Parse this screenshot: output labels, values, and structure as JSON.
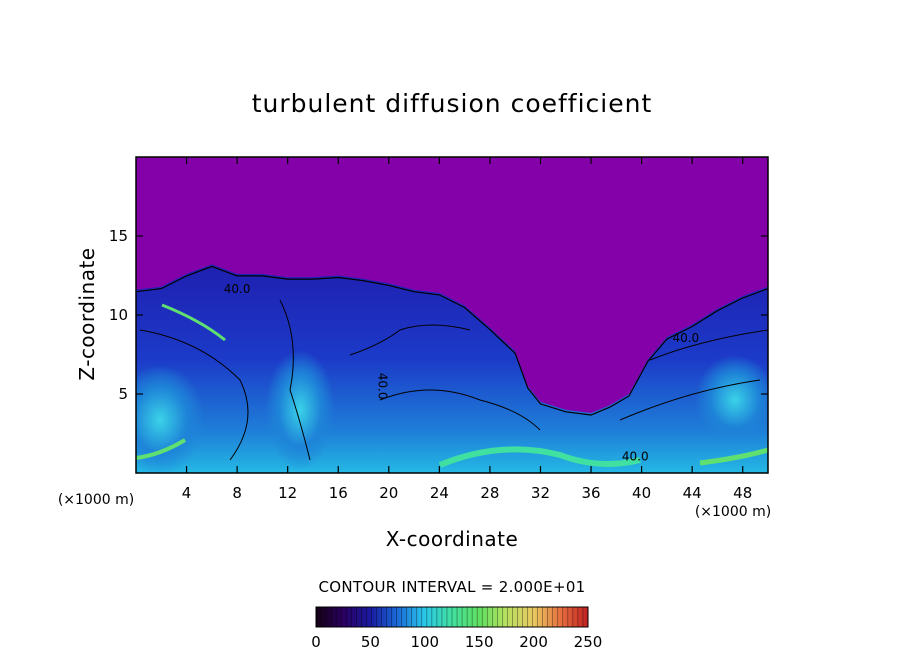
{
  "chart_data": {
    "type": "heatmap",
    "title": "turbulent diffusion coefficient",
    "xlabel": "X-coordinate",
    "ylabel": "Z-coordinate",
    "x_unit": "(×1000 m)",
    "y_unit": "(×1000 m)",
    "xlim": [
      0,
      50
    ],
    "ylim": [
      0,
      20
    ],
    "x_ticks": [
      4,
      8,
      12,
      16,
      20,
      24,
      28,
      32,
      36,
      40,
      44,
      48
    ],
    "y_ticks": [
      5,
      10,
      15
    ],
    "contour_interval_text": "CONTOUR INTERVAL = 2.000E+01",
    "contour_interval": 20,
    "contour_labels": [
      {
        "text": "40.0",
        "x": 8.0,
        "z": 11.4
      },
      {
        "text": "40.0",
        "x": 19.2,
        "z": 5.5
      },
      {
        "text": "40.0",
        "x": 43.5,
        "z": 8.3
      },
      {
        "text": "40.0",
        "x": 39.5,
        "z": 0.8
      }
    ],
    "background_value": 0,
    "colorbar": {
      "range": [
        0,
        250
      ],
      "ticks": [
        0,
        50,
        100,
        150,
        200,
        250
      ],
      "colormap": [
        "#140014",
        "#2a0060",
        "#1a1aa0",
        "#1a6ad8",
        "#2ac8e8",
        "#40e0a0",
        "#60e060",
        "#b8e060",
        "#e8c860",
        "#e87040",
        "#c02020"
      ]
    },
    "turbulent_region_top": [
      {
        "x": 0,
        "z": 11.6
      },
      {
        "x": 2,
        "z": 11.8
      },
      {
        "x": 4,
        "z": 12.6
      },
      {
        "x": 6,
        "z": 13.2
      },
      {
        "x": 8,
        "z": 12.6
      },
      {
        "x": 10,
        "z": 12.6
      },
      {
        "x": 12,
        "z": 12.4
      },
      {
        "x": 14,
        "z": 12.4
      },
      {
        "x": 16,
        "z": 12.5
      },
      {
        "x": 18,
        "z": 12.3
      },
      {
        "x": 20,
        "z": 12.0
      },
      {
        "x": 22,
        "z": 11.6
      },
      {
        "x": 24,
        "z": 11.4
      },
      {
        "x": 26,
        "z": 10.6
      },
      {
        "x": 28,
        "z": 9.2
      },
      {
        "x": 30,
        "z": 7.7
      },
      {
        "x": 31,
        "z": 5.5
      },
      {
        "x": 32,
        "z": 4.5
      },
      {
        "x": 34,
        "z": 4.0
      },
      {
        "x": 36,
        "z": 3.8
      },
      {
        "x": 37.5,
        "z": 4.3
      },
      {
        "x": 39,
        "z": 5.0
      },
      {
        "x": 40.5,
        "z": 7.2
      },
      {
        "x": 42,
        "z": 8.6
      },
      {
        "x": 44,
        "z": 9.4
      },
      {
        "x": 46,
        "z": 10.4
      },
      {
        "x": 48,
        "z": 11.2
      },
      {
        "x": 50,
        "z": 11.8
      }
    ],
    "dominant_value": 5,
    "colors": {
      "background": "#7f00a8",
      "ambient": "#8400a8"
    }
  }
}
